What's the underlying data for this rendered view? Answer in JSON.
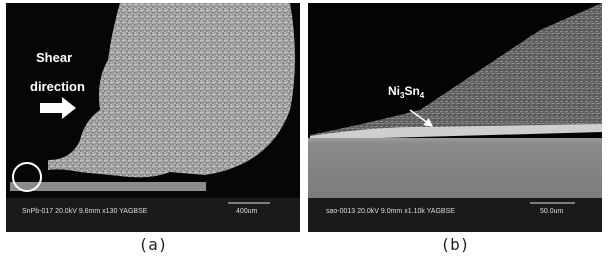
{
  "panels": [
    {
      "annotations": [
        "Shear",
        "direction"
      ],
      "info": "SnPb-017 20.0kV 9.6mm x130 YAGBSE",
      "scale": "400um",
      "caption": "(a)"
    },
    {
      "label": {
        "parts": [
          "Ni",
          "3",
          "Sn",
          "4"
        ]
      },
      "info": "sao-0013 20.0kV 9.0mm x1.10k YAGBSE",
      "scale": "50.0um",
      "caption": "(b)"
    }
  ]
}
